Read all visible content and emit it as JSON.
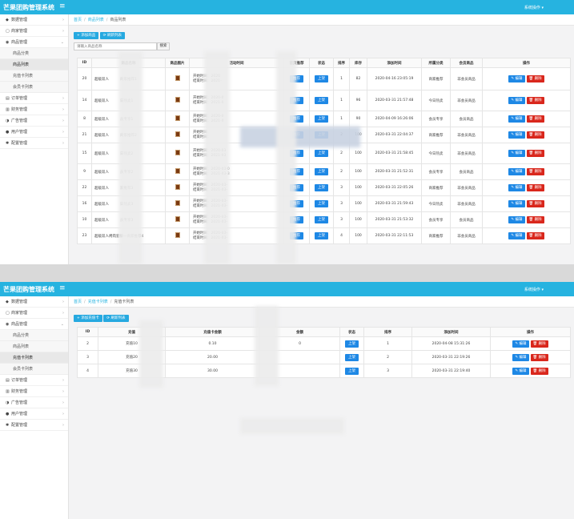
{
  "app": {
    "title": "芒果团购管理系统",
    "sys_op": "系统操作 ▾",
    "menu_icon": "hamburger-icon"
  },
  "sidebar": {
    "items": [
      {
        "icon": "dashboard-icon",
        "label": "数据管理"
      },
      {
        "icon": "store-icon",
        "label": "商家管理"
      },
      {
        "icon": "eye-icon",
        "label": "商品管理"
      },
      {
        "icon": "order-icon",
        "label": "订单管理"
      },
      {
        "icon": "finance-icon",
        "label": "财务管理"
      },
      {
        "icon": "ad-icon",
        "label": "广告管理"
      },
      {
        "icon": "user-icon",
        "label": "用户管理"
      },
      {
        "icon": "gear-icon",
        "label": "配置管理"
      }
    ],
    "sub": [
      "商品分类",
      "商品列表",
      "充值卡列表",
      "会员卡列表"
    ]
  },
  "page1": {
    "breadcrumb": [
      "首页",
      "商品列表",
      "商品列表"
    ],
    "add_btn": "+ 添加商品",
    "refresh_btn": "⟳ 刷新列表",
    "search_placeholder": "请输入商品名称",
    "search_btn": "搜索",
    "columns": [
      "ID",
      "商品名称",
      "商品图片",
      "活动时间",
      "首页推荐",
      "状态",
      "排序",
      "库存",
      "添加时间",
      "所属分类",
      "会员商品",
      "操作"
    ],
    "time_start": "开始时间：",
    "time_end": "结束时间：",
    "tag_recommend": "推荐",
    "tag_status": "上架",
    "edit": "✎ 编辑",
    "del": "🗑 删除",
    "rows": [
      {
        "id": "20",
        "name": "超级双人",
        "name2": "商家推荐1",
        "start": "2020",
        "end": "2021-",
        "sort": "1",
        "stock": "82",
        "added": "2020-04-16 23:05:19",
        "cat": "商家推荐",
        "member": "非会员商品"
      },
      {
        "id": "14",
        "name": "超级双人",
        "name2": "日热卖1",
        "start": "2020-0",
        "end": "2021-0",
        "sort": "1",
        "stock": "96",
        "added": "2020-03-31 21:57:48",
        "cat": "今日热卖",
        "member": "非会员商品"
      },
      {
        "id": "8",
        "name": "超级双人",
        "name2": "员专享1",
        "start": "2020-0",
        "end": "2021-0",
        "sort": "1",
        "stock": "90",
        "added": "2020-04-09 16:26:06",
        "cat": "会员专享",
        "member": "会员商品"
      },
      {
        "id": "21",
        "name": "超级双人",
        "name2": "商家推荐2",
        "start": "",
        "end": "",
        "sort": "2",
        "stock": "100",
        "added": "2020-03-31 22:04:37",
        "cat": "商家推荐",
        "member": "非会员商品"
      },
      {
        "id": "15",
        "name": "超级双人",
        "name2": "日热卖2",
        "start": "2020-03",
        "end": "2021-03",
        "sort": "2",
        "stock": "100",
        "added": "2020-03-31 21:58:45",
        "cat": "今日热卖",
        "member": "非会员商品"
      },
      {
        "id": "9",
        "name": "超级双人",
        "name2": "员专享2",
        "start": "2020-03-0",
        "end": "2021-03-3",
        "sort": "2",
        "stock": "100",
        "added": "2020-03-31 21:52:31",
        "cat": "会员专享",
        "member": "会员商品"
      },
      {
        "id": "22",
        "name": "超级双人",
        "name2": "家推荐3",
        "start": "2020-03-",
        "end": "2021-03-",
        "sort": "3",
        "stock": "100",
        "added": "2020-03-31 22:05:26",
        "cat": "商家推荐",
        "member": "非会员商品"
      },
      {
        "id": "16",
        "name": "超级双人",
        "name2": "日热卖3",
        "start": "2020-03-",
        "end": "2021-03-",
        "sort": "3",
        "stock": "100",
        "added": "2020-03-31 21:59:43",
        "cat": "今日热卖",
        "member": "非会员商品"
      },
      {
        "id": "10",
        "name": "超级双人",
        "name2": "员专享3",
        "start": "2020-03-",
        "end": "2021-03-",
        "sort": "3",
        "stock": "100",
        "added": "2020-03-31 21:53:32",
        "cat": "会员专享",
        "member": "会员商品"
      },
      {
        "id": "23",
        "name": "超级双人烤肉套餐一商家推荐4",
        "name2": "",
        "start": "2020-03-",
        "end": "2021-03-",
        "sort": "4",
        "stock": "100",
        "added": "2020-03-31 22:11:53",
        "cat": "商家推荐",
        "member": "非会员商品"
      }
    ]
  },
  "page2": {
    "breadcrumb": [
      "首页",
      "充值卡列表",
      "充值卡列表"
    ],
    "add_btn": "+ 添加充值卡",
    "refresh_btn": "⟳ 刷新列表",
    "columns": [
      "ID",
      "充值",
      "充值卡金额",
      "金额",
      "状态",
      "排序",
      "添加时间",
      "操作"
    ],
    "rows": [
      {
        "id": "2",
        "name": "充值10",
        "amount": "0.10",
        "pay": "0",
        "sort": "1",
        "added": "2020-04-08 15:31:26"
      },
      {
        "id": "3",
        "name": "充值20",
        "amount": "20.00",
        "pay": "",
        "sort": "2",
        "added": "2020-03-31 22:19:26"
      },
      {
        "id": "4",
        "name": "充值30",
        "amount": "30.00",
        "pay": "",
        "sort": "3",
        "added": "2020-03-31 22:19:40"
      }
    ]
  }
}
